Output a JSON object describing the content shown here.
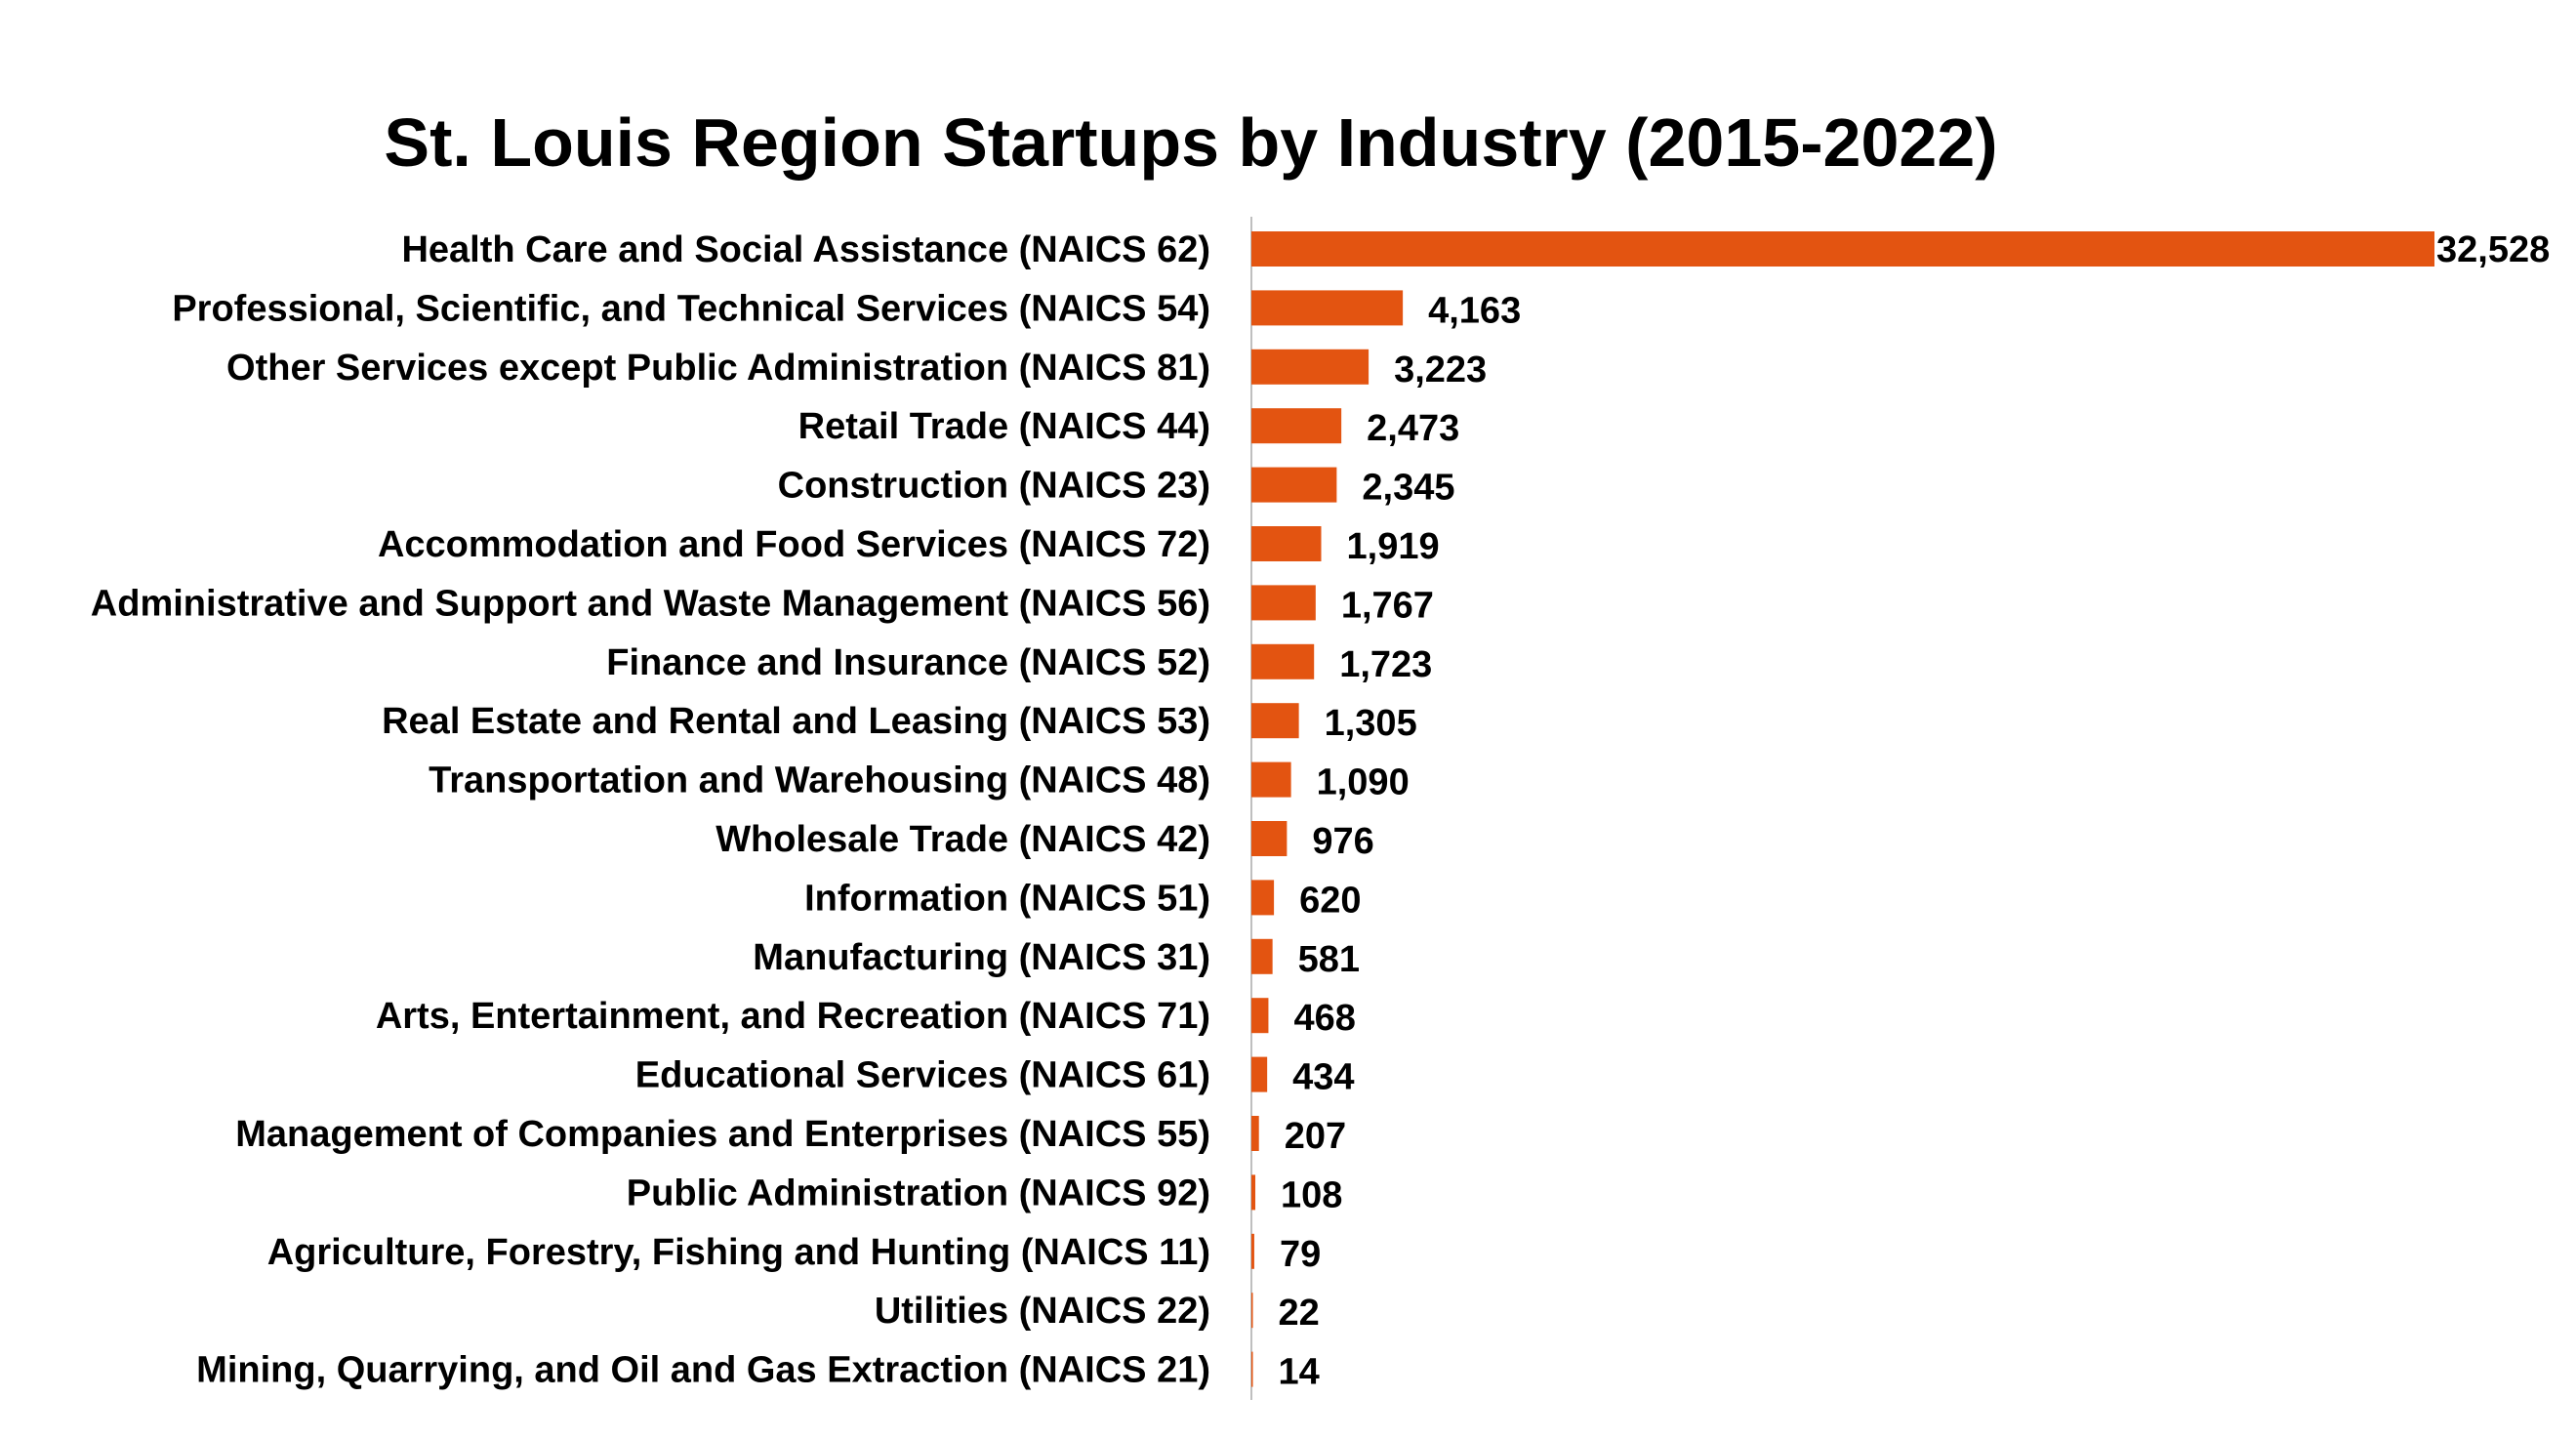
{
  "colors": {
    "bar": "#E35411",
    "axis": "#BFBFBF",
    "text": "#000000",
    "background": "#FFFFFF"
  },
  "chart_data": {
    "type": "bar",
    "orientation": "horizontal",
    "title": "St. Louis Region Startups by Industry (2015-2022)",
    "xlabel": "",
    "ylabel": "",
    "grid": false,
    "legend": "none",
    "xlim": [
      0,
      32528
    ],
    "categories": [
      "Health Care and Social Assistance (NAICS 62)",
      "Professional, Scientific, and Technical Services (NAICS 54)",
      "Other Services except Public Administration (NAICS 81)",
      "Retail Trade (NAICS 44)",
      "Construction (NAICS 23)",
      "Accommodation and Food Services (NAICS 72)",
      "Administrative and Support and Waste Management (NAICS 56)",
      "Finance and Insurance (NAICS 52)",
      "Real Estate and Rental and Leasing (NAICS 53)",
      "Transportation and Warehousing (NAICS 48)",
      "Wholesale Trade (NAICS 42)",
      "Information (NAICS 51)",
      "Manufacturing (NAICS 31)",
      "Arts, Entertainment, and Recreation (NAICS 71)",
      "Educational Services (NAICS 61)",
      "Management of Companies and Enterprises (NAICS 55)",
      "Public Administration (NAICS 92)",
      "Agriculture, Forestry, Fishing and Hunting (NAICS 11)",
      "Utilities (NAICS 22)",
      "Mining, Quarrying, and Oil and Gas Extraction (NAICS 21)"
    ],
    "values": [
      32528,
      4163,
      3223,
      2473,
      2345,
      1919,
      1767,
      1723,
      1305,
      1090,
      976,
      620,
      581,
      468,
      434,
      207,
      108,
      79,
      22,
      14
    ],
    "value_labels": [
      "32,528",
      "4,163",
      "3,223",
      "2,473",
      "2,345",
      "1,919",
      "1,767",
      "1,723",
      "1,305",
      "1,090",
      "976",
      "620",
      "581",
      "468",
      "434",
      "207",
      "108",
      "79",
      "22",
      "14"
    ]
  }
}
